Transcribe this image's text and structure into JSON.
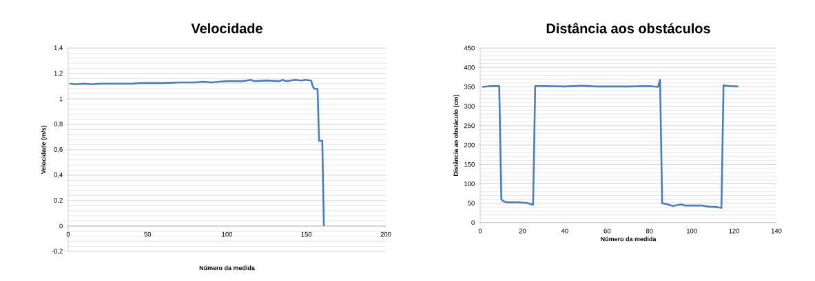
{
  "chart_data": [
    {
      "type": "line",
      "title": "Velocidade",
      "xlabel": "Número da medida",
      "ylabel": "Velocidade (m/s)",
      "series": [
        {
          "color": "#4a7ebb",
          "x": [
            1,
            5,
            10,
            15,
            20,
            30,
            40,
            45,
            50,
            60,
            70,
            75,
            80,
            85,
            90,
            95,
            100,
            110,
            115,
            117,
            125,
            133,
            135,
            137,
            143,
            147,
            149,
            153,
            154,
            155,
            157,
            158,
            160,
            161
          ],
          "values": [
            1.12,
            1.115,
            1.12,
            1.115,
            1.12,
            1.12,
            1.12,
            1.125,
            1.125,
            1.125,
            1.13,
            1.13,
            1.13,
            1.135,
            1.13,
            1.135,
            1.14,
            1.14,
            1.15,
            1.14,
            1.145,
            1.14,
            1.15,
            1.14,
            1.15,
            1.145,
            1.15,
            1.145,
            1.1,
            1.08,
            1.08,
            0.67,
            0.67,
            0
          ]
        }
      ],
      "xlim": [
        0,
        200
      ],
      "xticks": [
        0,
        50,
        100,
        150,
        200
      ],
      "ylim": [
        -0.2,
        1.4
      ],
      "yticks": [
        {
          "value": -0.2,
          "label": "-0,2"
        },
        0,
        {
          "value": 0.2,
          "label": "0,2"
        },
        {
          "value": 0.4,
          "label": "0,4"
        },
        {
          "value": 0.6,
          "label": "0,6"
        },
        {
          "value": 0.8,
          "label": "0,8"
        },
        1,
        {
          "value": 1.2,
          "label": "1,2"
        },
        {
          "value": 1.4,
          "label": "1,4"
        }
      ],
      "grid": "y"
    },
    {
      "type": "line",
      "title": "Distância aos obstáculos",
      "xlabel": "Número da medida",
      "ylabel": "Distância ao obstáculo (cm)",
      "series": [
        {
          "color": "#4a7ebb",
          "x": [
            1,
            5,
            9,
            10,
            11,
            13,
            18,
            22,
            25,
            26,
            30,
            40,
            48,
            55,
            70,
            80,
            84,
            85,
            86,
            88,
            91,
            95,
            97,
            105,
            108,
            112,
            114,
            115,
            118,
            122
          ],
          "values": [
            350,
            352,
            352,
            60,
            55,
            52,
            52,
            51,
            46,
            352,
            352,
            351,
            353,
            351,
            351,
            352,
            350,
            368,
            50,
            48,
            43,
            47,
            44,
            44,
            41,
            40,
            38,
            354,
            352,
            351
          ]
        }
      ],
      "xlim": [
        0,
        140
      ],
      "xticks": [
        0,
        20,
        40,
        60,
        80,
        100,
        120,
        140
      ],
      "ylim": [
        0,
        450
      ],
      "yticks": [
        0,
        50,
        100,
        150,
        200,
        250,
        300,
        350,
        400,
        450
      ],
      "grid": "y"
    }
  ]
}
